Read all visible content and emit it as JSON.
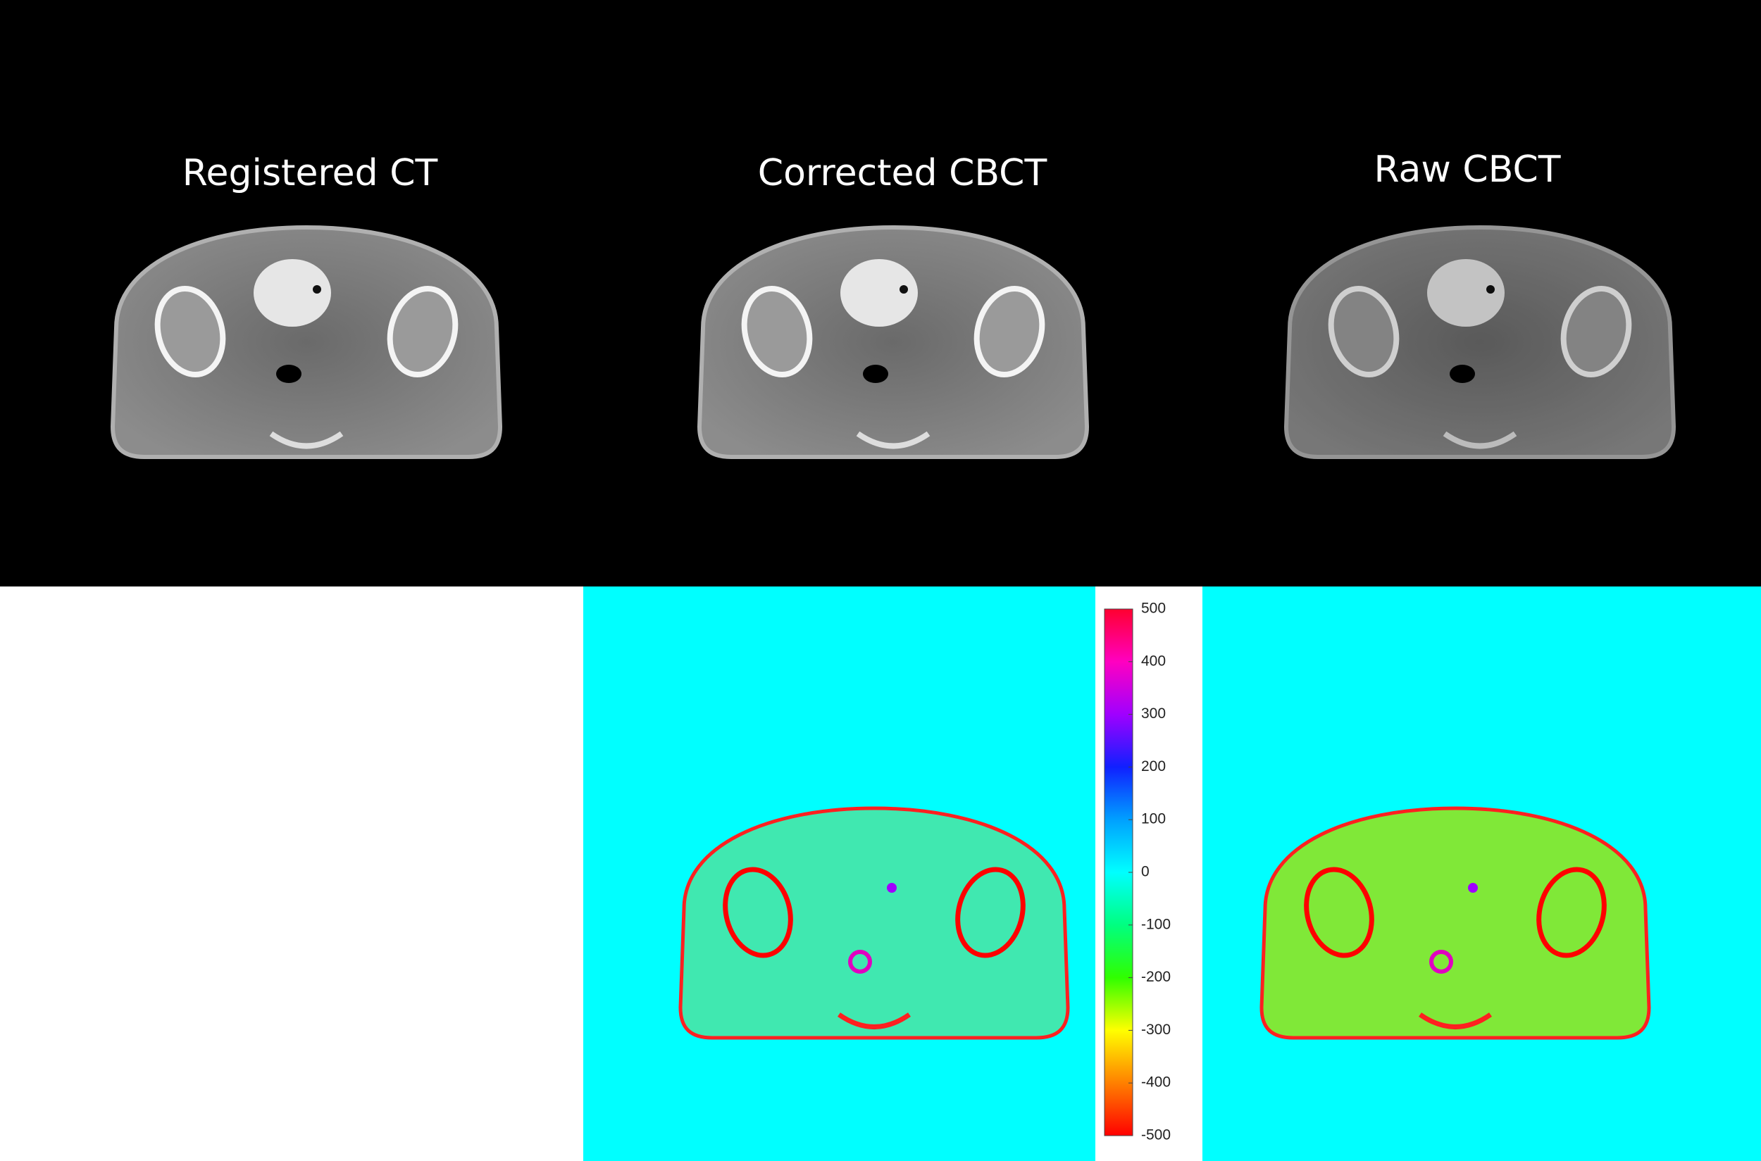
{
  "panels": [
    {
      "title": "Registered CT"
    },
    {
      "title": "Corrected CBCT"
    },
    {
      "title": "Raw CBCT"
    }
  ],
  "colorbar": {
    "ticks": [
      500,
      400,
      300,
      200,
      100,
      0,
      -100,
      -200,
      -300,
      -400,
      -500
    ]
  }
}
